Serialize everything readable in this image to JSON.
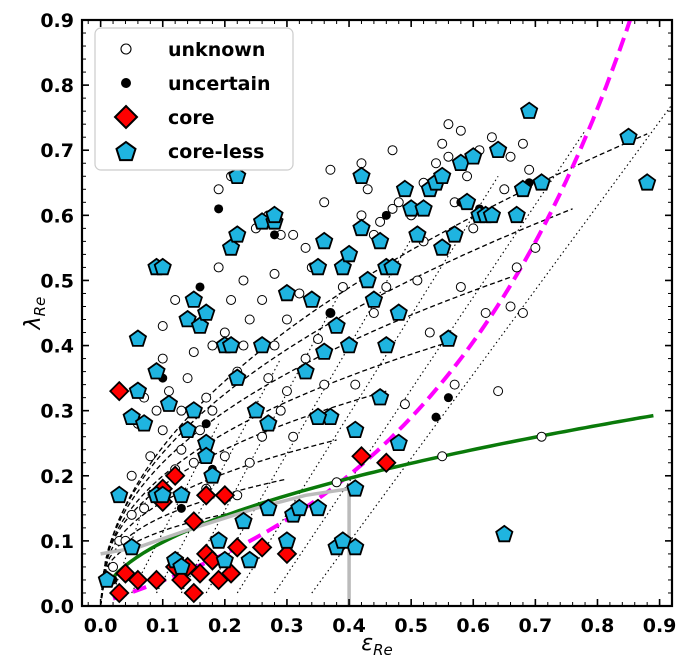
{
  "chart_data": {
    "type": "scatter",
    "xlabel": "ε",
    "xlabel_sub": "Re",
    "ylabel": "λ",
    "ylabel_sub": "Re",
    "xlim": [
      -0.03,
      0.92
    ],
    "ylim": [
      0.0,
      0.9
    ],
    "x_ticks": [
      "0.0",
      "0.1",
      "0.2",
      "0.3",
      "0.4",
      "0.5",
      "0.6",
      "0.7",
      "0.8",
      "0.9"
    ],
    "y_ticks": [
      "0.0",
      "0.1",
      "0.2",
      "0.3",
      "0.4",
      "0.5",
      "0.6",
      "0.7",
      "0.8",
      "0.9"
    ],
    "legend_position": "top-left",
    "series": [
      {
        "name": "unknown",
        "marker": "open-circle",
        "color": "#000000",
        "points": [
          [
            0.02,
            0.06
          ],
          [
            0.03,
            0.1
          ],
          [
            0.04,
            0.1
          ],
          [
            0.05,
            0.14
          ],
          [
            0.05,
            0.2
          ],
          [
            0.06,
            0.28
          ],
          [
            0.07,
            0.15
          ],
          [
            0.07,
            0.32
          ],
          [
            0.08,
            0.23
          ],
          [
            0.09,
            0.3
          ],
          [
            0.1,
            0.43
          ],
          [
            0.1,
            0.38
          ],
          [
            0.1,
            0.27
          ],
          [
            0.11,
            0.33
          ],
          [
            0.12,
            0.47
          ],
          [
            0.12,
            0.21
          ],
          [
            0.13,
            0.24
          ],
          [
            0.13,
            0.3
          ],
          [
            0.14,
            0.35
          ],
          [
            0.15,
            0.39
          ],
          [
            0.15,
            0.22
          ],
          [
            0.16,
            0.27
          ],
          [
            0.17,
            0.32
          ],
          [
            0.17,
            0.18
          ],
          [
            0.18,
            0.3
          ],
          [
            0.18,
            0.4
          ],
          [
            0.19,
            0.64
          ],
          [
            0.19,
            0.52
          ],
          [
            0.2,
            0.42
          ],
          [
            0.2,
            0.23
          ],
          [
            0.21,
            0.47
          ],
          [
            0.21,
            0.66
          ],
          [
            0.22,
            0.36
          ],
          [
            0.22,
            0.17
          ],
          [
            0.23,
            0.5
          ],
          [
            0.23,
            0.4
          ],
          [
            0.24,
            0.44
          ],
          [
            0.24,
            0.22
          ],
          [
            0.25,
            0.3
          ],
          [
            0.25,
            0.58
          ],
          [
            0.26,
            0.26
          ],
          [
            0.26,
            0.47
          ],
          [
            0.27,
            0.6
          ],
          [
            0.27,
            0.35
          ],
          [
            0.28,
            0.4
          ],
          [
            0.28,
            0.51
          ],
          [
            0.29,
            0.3
          ],
          [
            0.3,
            0.44
          ],
          [
            0.3,
            0.33
          ],
          [
            0.31,
            0.57
          ],
          [
            0.31,
            0.26
          ],
          [
            0.32,
            0.48
          ],
          [
            0.33,
            0.55
          ],
          [
            0.33,
            0.38
          ],
          [
            0.34,
            0.52
          ],
          [
            0.35,
            0.41
          ],
          [
            0.36,
            0.34
          ],
          [
            0.37,
            0.67
          ],
          [
            0.37,
            0.45
          ],
          [
            0.38,
            0.19
          ],
          [
            0.39,
            0.49
          ],
          [
            0.4,
            0.54
          ],
          [
            0.41,
            0.34
          ],
          [
            0.42,
            0.68
          ],
          [
            0.42,
            0.6
          ],
          [
            0.43,
            0.64
          ],
          [
            0.44,
            0.45
          ],
          [
            0.45,
            0.59
          ],
          [
            0.46,
            0.49
          ],
          [
            0.47,
            0.7
          ],
          [
            0.48,
            0.62
          ],
          [
            0.49,
            0.31
          ],
          [
            0.5,
            0.6
          ],
          [
            0.51,
            0.5
          ],
          [
            0.52,
            0.65
          ],
          [
            0.53,
            0.42
          ],
          [
            0.54,
            0.68
          ],
          [
            0.55,
            0.71
          ],
          [
            0.55,
            0.23
          ],
          [
            0.56,
            0.74
          ],
          [
            0.56,
            0.69
          ],
          [
            0.57,
            0.62
          ],
          [
            0.57,
            0.34
          ],
          [
            0.58,
            0.73
          ],
          [
            0.59,
            0.66
          ],
          [
            0.6,
            0.58
          ],
          [
            0.61,
            0.7
          ],
          [
            0.62,
            0.45
          ],
          [
            0.63,
            0.72
          ],
          [
            0.64,
            0.33
          ],
          [
            0.65,
            0.64
          ],
          [
            0.66,
            0.69
          ],
          [
            0.67,
            0.52
          ],
          [
            0.68,
            0.45
          ],
          [
            0.68,
            0.71
          ],
          [
            0.69,
            0.67
          ],
          [
            0.7,
            0.55
          ],
          [
            0.71,
            0.26
          ],
          [
            0.62,
            0.6
          ],
          [
            0.52,
            0.56
          ],
          [
            0.47,
            0.61
          ],
          [
            0.36,
            0.62
          ],
          [
            0.29,
            0.57
          ],
          [
            0.44,
            0.57
          ],
          [
            0.58,
            0.49
          ],
          [
            0.66,
            0.46
          ]
        ]
      },
      {
        "name": "uncertain",
        "marker": "filled-circle",
        "color": "#000000",
        "points": [
          [
            0.02,
            0.04
          ],
          [
            0.1,
            0.35
          ],
          [
            0.13,
            0.15
          ],
          [
            0.16,
            0.49
          ],
          [
            0.17,
            0.28
          ],
          [
            0.18,
            0.21
          ],
          [
            0.19,
            0.61
          ],
          [
            0.28,
            0.57
          ],
          [
            0.37,
            0.45
          ],
          [
            0.46,
            0.6
          ],
          [
            0.54,
            0.29
          ],
          [
            0.56,
            0.32
          ],
          [
            0.58,
            0.62
          ],
          [
            0.61,
            0.61
          ],
          [
            0.69,
            0.65
          ]
        ]
      },
      {
        "name": "core",
        "marker": "diamond",
        "color": "#ff0000",
        "points": [
          [
            0.03,
            0.33
          ],
          [
            0.03,
            0.02
          ],
          [
            0.04,
            0.05
          ],
          [
            0.06,
            0.04
          ],
          [
            0.09,
            0.04
          ],
          [
            0.1,
            0.18
          ],
          [
            0.1,
            0.16
          ],
          [
            0.12,
            0.2
          ],
          [
            0.12,
            0.06
          ],
          [
            0.13,
            0.04
          ],
          [
            0.14,
            0.06
          ],
          [
            0.15,
            0.13
          ],
          [
            0.15,
            0.02
          ],
          [
            0.16,
            0.05
          ],
          [
            0.17,
            0.08
          ],
          [
            0.17,
            0.17
          ],
          [
            0.18,
            0.07
          ],
          [
            0.19,
            0.04
          ],
          [
            0.2,
            0.17
          ],
          [
            0.21,
            0.05
          ],
          [
            0.22,
            0.09
          ],
          [
            0.26,
            0.09
          ],
          [
            0.3,
            0.08
          ],
          [
            0.42,
            0.23
          ],
          [
            0.46,
            0.22
          ]
        ]
      },
      {
        "name": "core-less",
        "marker": "pentagon",
        "color": "#1fb4e0",
        "points": [
          [
            0.01,
            0.04
          ],
          [
            0.03,
            0.17
          ],
          [
            0.05,
            0.29
          ],
          [
            0.05,
            0.09
          ],
          [
            0.06,
            0.41
          ],
          [
            0.06,
            0.33
          ],
          [
            0.07,
            0.28
          ],
          [
            0.09,
            0.52
          ],
          [
            0.09,
            0.36
          ],
          [
            0.09,
            0.17
          ],
          [
            0.1,
            0.52
          ],
          [
            0.1,
            0.17
          ],
          [
            0.11,
            0.31
          ],
          [
            0.12,
            0.07
          ],
          [
            0.13,
            0.17
          ],
          [
            0.13,
            0.06
          ],
          [
            0.14,
            0.44
          ],
          [
            0.14,
            0.27
          ],
          [
            0.15,
            0.47
          ],
          [
            0.15,
            0.3
          ],
          [
            0.16,
            0.43
          ],
          [
            0.17,
            0.45
          ],
          [
            0.17,
            0.25
          ],
          [
            0.17,
            0.23
          ],
          [
            0.18,
            0.2
          ],
          [
            0.19,
            0.1
          ],
          [
            0.2,
            0.4
          ],
          [
            0.2,
            0.07
          ],
          [
            0.21,
            0.55
          ],
          [
            0.21,
            0.4
          ],
          [
            0.22,
            0.66
          ],
          [
            0.22,
            0.57
          ],
          [
            0.22,
            0.35
          ],
          [
            0.23,
            0.13
          ],
          [
            0.24,
            0.07
          ],
          [
            0.25,
            0.3
          ],
          [
            0.26,
            0.59
          ],
          [
            0.26,
            0.4
          ],
          [
            0.27,
            0.28
          ],
          [
            0.27,
            0.15
          ],
          [
            0.28,
            0.59
          ],
          [
            0.28,
            0.6
          ],
          [
            0.3,
            0.48
          ],
          [
            0.3,
            0.1
          ],
          [
            0.31,
            0.14
          ],
          [
            0.32,
            0.15
          ],
          [
            0.33,
            0.36
          ],
          [
            0.34,
            0.47
          ],
          [
            0.35,
            0.52
          ],
          [
            0.35,
            0.15
          ],
          [
            0.36,
            0.56
          ],
          [
            0.36,
            0.39
          ],
          [
            0.37,
            0.29
          ],
          [
            0.38,
            0.43
          ],
          [
            0.38,
            0.09
          ],
          [
            0.39,
            0.52
          ],
          [
            0.4,
            0.54
          ],
          [
            0.4,
            0.4
          ],
          [
            0.41,
            0.27
          ],
          [
            0.41,
            0.09
          ],
          [
            0.42,
            0.58
          ],
          [
            0.42,
            0.66
          ],
          [
            0.43,
            0.5
          ],
          [
            0.44,
            0.47
          ],
          [
            0.45,
            0.56
          ],
          [
            0.46,
            0.52
          ],
          [
            0.46,
            0.4
          ],
          [
            0.47,
            0.52
          ],
          [
            0.48,
            0.45
          ],
          [
            0.48,
            0.25
          ],
          [
            0.49,
            0.64
          ],
          [
            0.5,
            0.61
          ],
          [
            0.51,
            0.57
          ],
          [
            0.52,
            0.61
          ],
          [
            0.53,
            0.64
          ],
          [
            0.54,
            0.65
          ],
          [
            0.55,
            0.66
          ],
          [
            0.55,
            0.55
          ],
          [
            0.56,
            0.41
          ],
          [
            0.57,
            0.57
          ],
          [
            0.58,
            0.68
          ],
          [
            0.59,
            0.62
          ],
          [
            0.6,
            0.69
          ],
          [
            0.61,
            0.6
          ],
          [
            0.62,
            0.6
          ],
          [
            0.63,
            0.6
          ],
          [
            0.64,
            0.7
          ],
          [
            0.65,
            0.11
          ],
          [
            0.67,
            0.6
          ],
          [
            0.68,
            0.64
          ],
          [
            0.69,
            0.76
          ],
          [
            0.71,
            0.65
          ],
          [
            0.85,
            0.72
          ],
          [
            0.88,
            0.65
          ],
          [
            0.41,
            0.18
          ],
          [
            0.39,
            0.1
          ],
          [
            0.45,
            0.32
          ],
          [
            0.35,
            0.29
          ]
        ]
      }
    ]
  }
}
